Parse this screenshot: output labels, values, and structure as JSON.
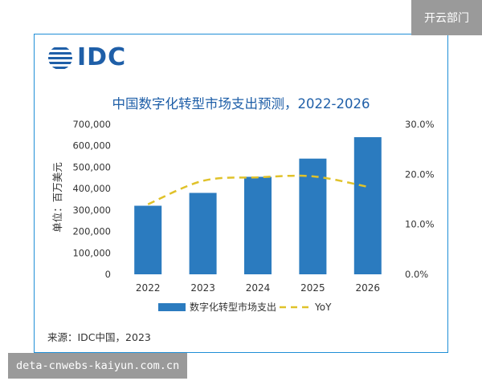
{
  "badge": "开云部门",
  "logo_text": "IDC",
  "source": "来源：IDC中国，2023",
  "watermark": "deta-cnwebs-kaiyun.com.cn",
  "colors": {
    "bar": "#2b7bbf",
    "line": "#e0c22a",
    "frame": "#1f8fd6",
    "title": "#1f5fa8"
  },
  "chart_data": {
    "type": "bar",
    "title": "中国数字化转型市场支出预测，2022-2026",
    "ylabel": "单位：百万美元",
    "categories": [
      "2022",
      "2023",
      "2024",
      "2025",
      "2026"
    ],
    "series": [
      {
        "name": "数字化转型市场支出",
        "type": "bar",
        "axis": "left",
        "values": [
          320000,
          380000,
          455000,
          540000,
          640000
        ]
      },
      {
        "name": "YoY",
        "type": "line",
        "style": "dashed",
        "axis": "right",
        "values": [
          0.14,
          0.187,
          0.194,
          0.196,
          0.175
        ]
      }
    ],
    "ylim": [
      0,
      700000
    ],
    "yticks": [
      "0",
      "100,000",
      "200,000",
      "300,000",
      "400,000",
      "500,000",
      "600,000",
      "700,000"
    ],
    "y2lim": [
      0,
      0.3
    ],
    "y2ticks": [
      "0.0%",
      "10.0%",
      "20.0%",
      "30.0%"
    ],
    "grid": false,
    "legend": "bottom"
  }
}
